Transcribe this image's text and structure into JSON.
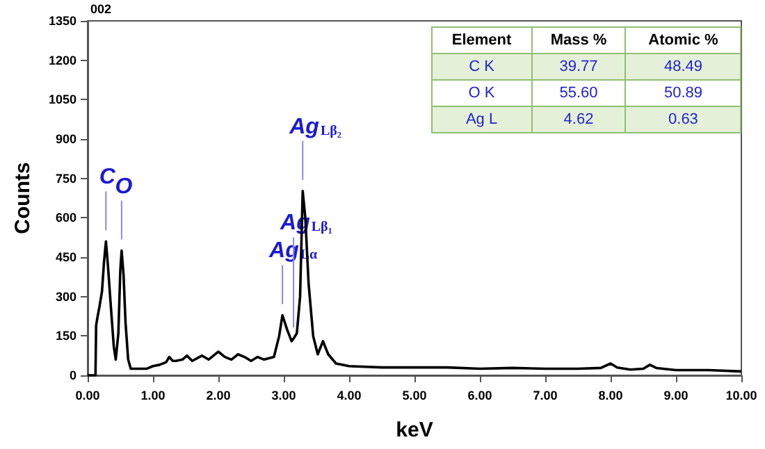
{
  "chart_data": [
    {
      "type": "line",
      "xlabel": "keV",
      "ylabel": "Counts",
      "annotations": [
        "002",
        {
          "text": "C",
          "x": 0.28,
          "y": 510
        },
        {
          "text": "O",
          "x": 0.52,
          "y": 475
        },
        {
          "text": "AgLα",
          "x": 2.98,
          "y": 229
        },
        {
          "text": "AgLβ₁",
          "x": 3.15,
          "y": 140
        },
        {
          "text": "AgLβ₂",
          "x": 3.29,
          "y": 702
        }
      ],
      "series": [
        {
          "color": "#000000",
          "x": [
            0,
            0.1,
            0.12,
            0.13,
            0.15,
            0.18,
            0.22,
            0.25,
            0.28,
            0.31,
            0.35,
            0.4,
            0.43,
            0.47,
            0.5,
            0.52,
            0.55,
            0.58,
            0.62,
            0.66,
            0.8,
            0.9,
            1.0,
            1.1,
            1.2,
            1.25,
            1.3,
            1.35,
            1.45,
            1.52,
            1.6,
            1.75,
            1.85,
            2.0,
            2.1,
            2.2,
            2.3,
            2.4,
            2.5,
            2.6,
            2.7,
            2.85,
            2.93,
            2.98,
            3.05,
            3.12,
            3.15,
            3.2,
            3.25,
            3.29,
            3.33,
            3.38,
            3.45,
            3.52,
            3.6,
            3.68,
            3.8,
            4.0,
            4.5,
            5.0,
            5.5,
            6.0,
            6.5,
            7.0,
            7.5,
            7.85,
            8.0,
            8.1,
            8.3,
            8.5,
            8.6,
            8.7,
            9.0,
            9.5,
            10.0
          ],
          "values": [
            0,
            0,
            0,
            190,
            220,
            260,
            320,
            430,
            510,
            420,
            280,
            110,
            60,
            160,
            400,
            475,
            380,
            200,
            60,
            25,
            25,
            25,
            35,
            40,
            50,
            70,
            55,
            55,
            60,
            75,
            55,
            75,
            60,
            90,
            70,
            60,
            80,
            70,
            55,
            70,
            60,
            70,
            150,
            229,
            175,
            130,
            140,
            160,
            300,
            702,
            600,
            350,
            150,
            80,
            130,
            80,
            45,
            35,
            30,
            30,
            30,
            25,
            28,
            25,
            25,
            28,
            45,
            30,
            22,
            25,
            40,
            28,
            20,
            20,
            15
          ]
        }
      ],
      "xlim": [
        0,
        10
      ],
      "xticks": [
        {
          "value": 0,
          "label": "0.00"
        },
        {
          "value": 1,
          "label": "1.00"
        },
        {
          "value": 2,
          "label": "2.00"
        },
        {
          "value": 3,
          "label": "3.00"
        },
        {
          "value": 4,
          "label": "4.00"
        },
        {
          "value": 5,
          "label": "5.00"
        },
        {
          "value": 6,
          "label": "6.00"
        },
        {
          "value": 7,
          "label": "7.00"
        },
        {
          "value": 8,
          "label": "8.00"
        },
        {
          "value": 9,
          "label": "9.00"
        },
        {
          "value": 10,
          "label": "10.00"
        }
      ],
      "ylim": [
        0,
        1350
      ],
      "yticks": [
        0,
        150,
        300,
        450,
        600,
        750,
        900,
        1050,
        1200,
        1350
      ],
      "grid": false,
      "marker": "none",
      "line_style": "solid"
    },
    {
      "type": "other",
      "annotations": [
        "Element",
        "Mass %",
        "Atomic %",
        "C K",
        "39.77",
        "48.49",
        "O K",
        "55.60",
        "50.89",
        "Ag L",
        "4.62",
        "0.63"
      ]
    }
  ]
}
